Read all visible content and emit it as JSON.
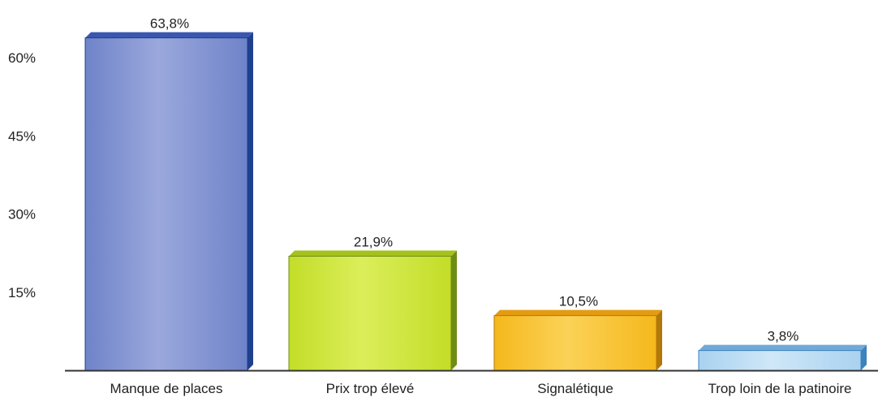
{
  "chart_data": {
    "type": "bar",
    "categories": [
      "Manque de places",
      "Prix trop élevé",
      "Signalétique",
      "Trop loin de la patinoire"
    ],
    "values": [
      63.8,
      21.9,
      10.5,
      3.8
    ],
    "value_labels": [
      "63,8%",
      "21,9%",
      "10,5%",
      "3,8%"
    ],
    "yticks": [
      15,
      30,
      45,
      60
    ],
    "ytick_labels": [
      "15%",
      "30%",
      "45%",
      "60%"
    ],
    "ylim": [
      0,
      64
    ],
    "grid": false,
    "bar_colors": [
      {
        "front": "#6f83c9",
        "front_light": "#9aa8dc",
        "side": "#1f3f8f",
        "top": "#3a57b0"
      },
      {
        "front": "#c3dd28",
        "front_light": "#dbee5a",
        "side": "#6f8d16",
        "top": "#a3c21c"
      },
      {
        "front": "#f5b81c",
        "front_light": "#fbd257",
        "side": "#b3780a",
        "top": "#e39c12"
      },
      {
        "front": "#a9d2f0",
        "front_light": "#cfe7f8",
        "side": "#3d82bd",
        "top": "#6fa9d8"
      }
    ],
    "axis_color": "#333333",
    "label_color": "#222222"
  }
}
